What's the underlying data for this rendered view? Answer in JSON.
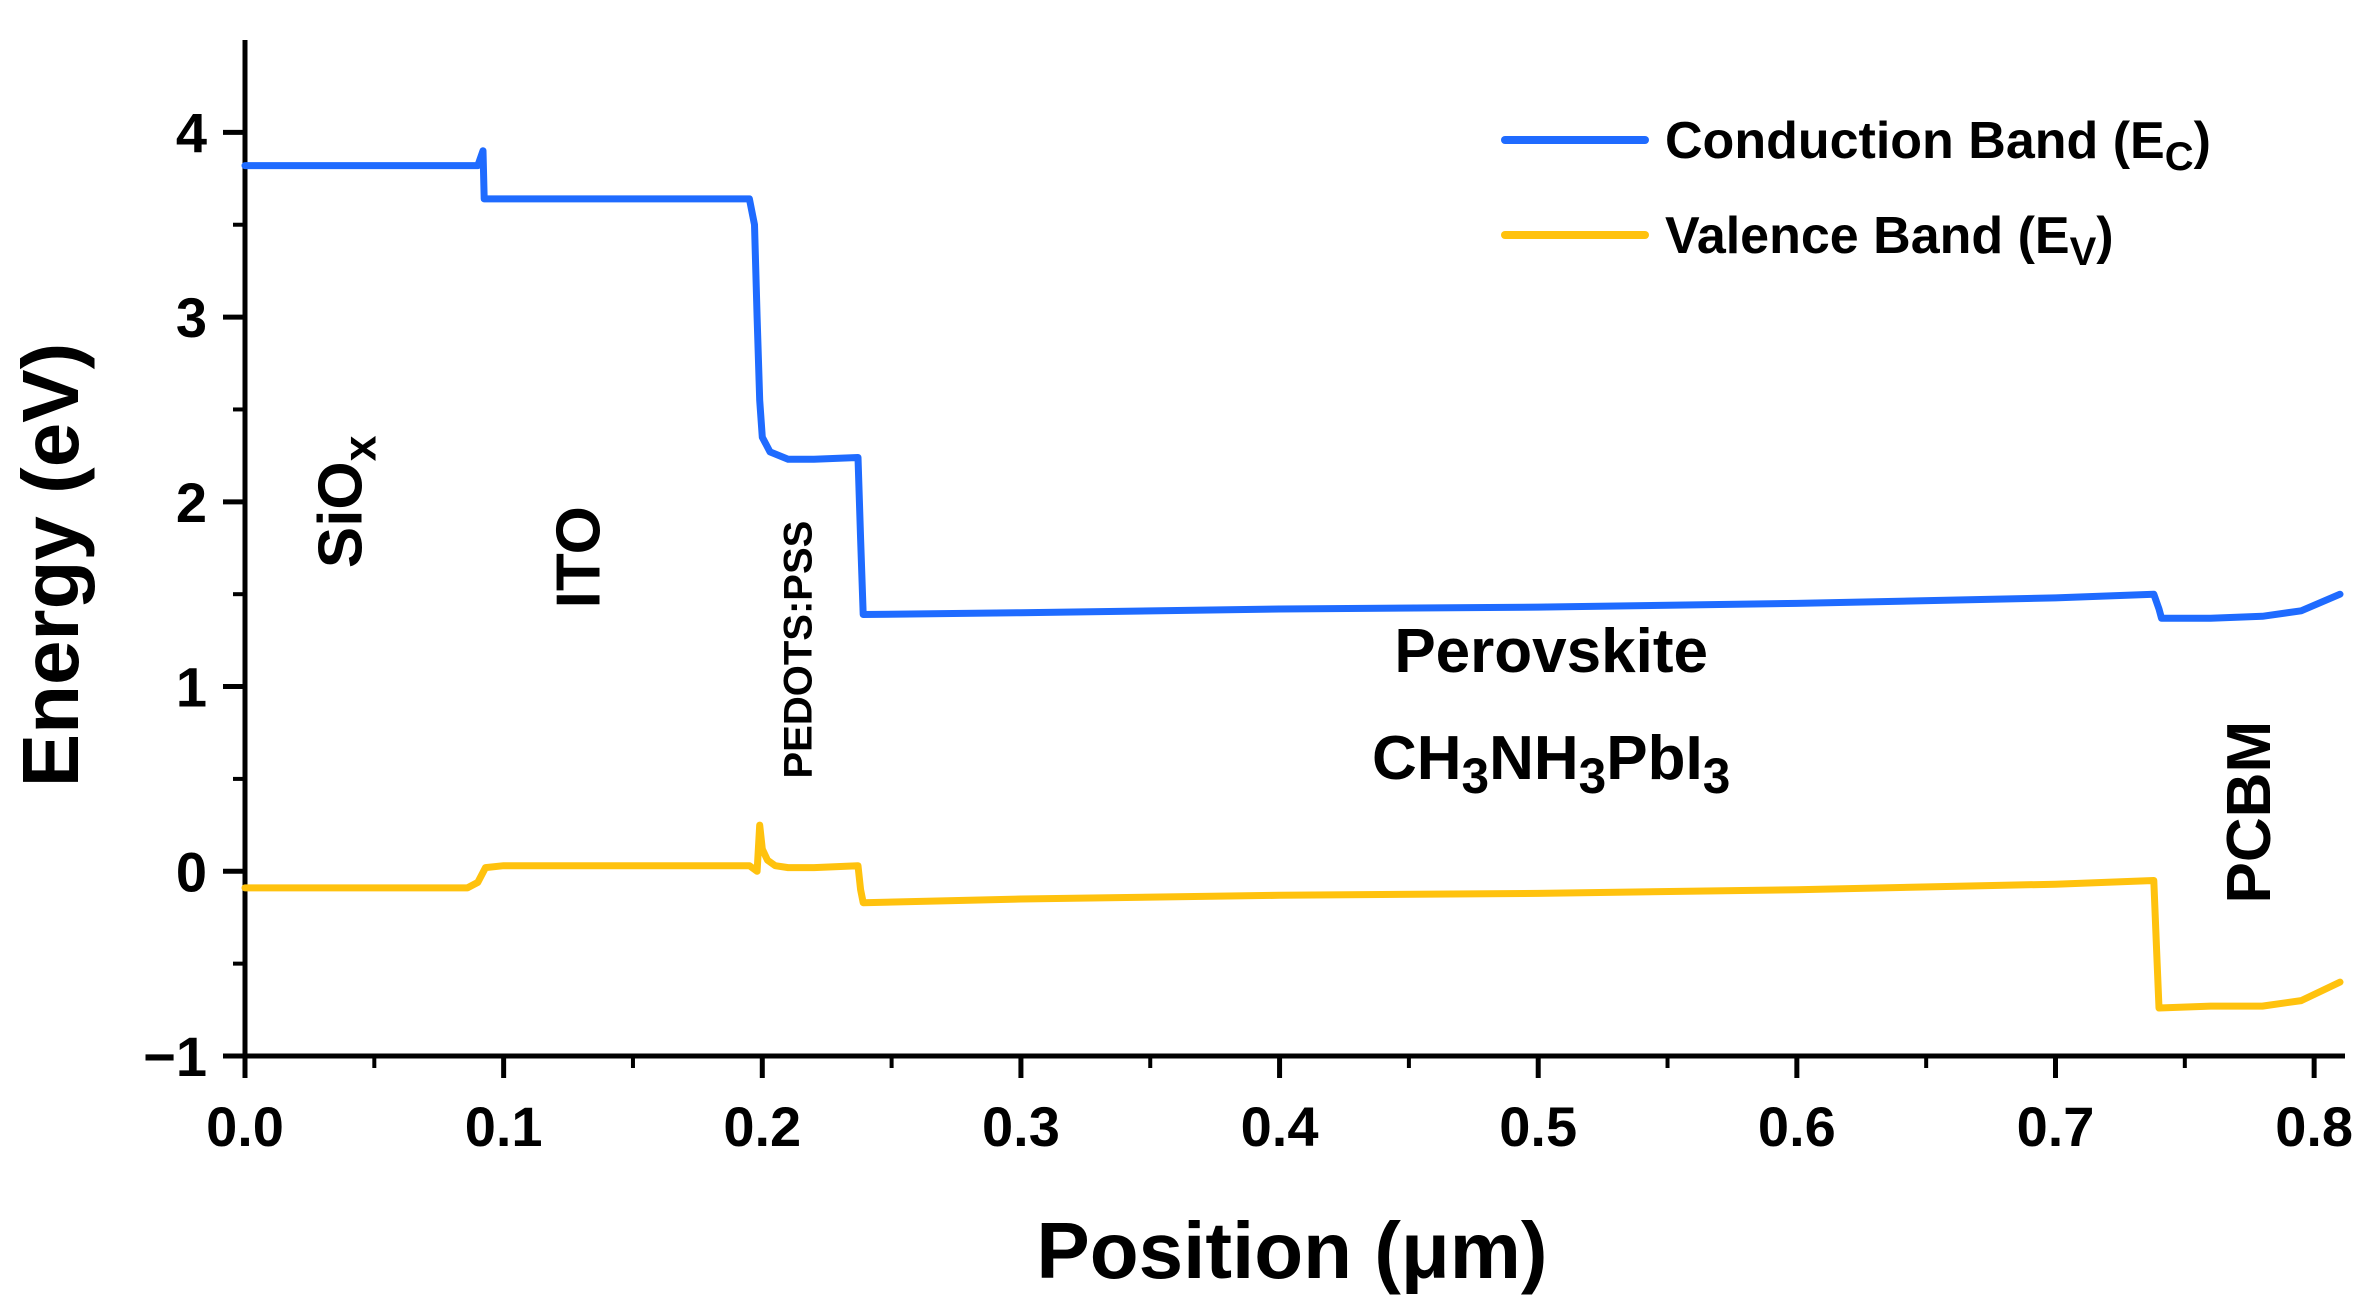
{
  "colors": {
    "conduction": "#1f6bff",
    "valence": "#ffc20e",
    "axis": "#000000"
  },
  "chart_data": {
    "type": "line",
    "title": "",
    "xlabel": "Position (μm)",
    "ylabel": "Energy (eV)",
    "xlim": [
      0.0,
      0.81
    ],
    "ylim": [
      -1.0,
      4.5
    ],
    "x_ticks": [
      0.0,
      0.1,
      0.2,
      0.3,
      0.4,
      0.5,
      0.6,
      0.7,
      0.8
    ],
    "x_tick_labels": [
      "0.0",
      "0.1",
      "0.2",
      "0.3",
      "0.4",
      "0.5",
      "0.6",
      "0.7",
      "0.8"
    ],
    "y_ticks": [
      -1,
      0,
      1,
      2,
      3,
      4
    ],
    "y_tick_labels": [
      "−1",
      "0",
      "1",
      "2",
      "3",
      "4"
    ],
    "legend": {
      "placement": "top-right",
      "entries": [
        {
          "label": "Conduction Band (E",
          "sub": "C",
          "close": ")",
          "series": "conduction"
        },
        {
          "label": "Valence Band (E",
          "sub": "V",
          "close": ")",
          "series": "valence"
        }
      ]
    },
    "series": [
      {
        "name": "Conduction Band (Ec)",
        "color_key": "conduction",
        "x": [
          0.0,
          0.09,
          0.092,
          0.0925,
          0.093,
          0.095,
          0.195,
          0.197,
          0.198,
          0.199,
          0.2,
          0.203,
          0.21,
          0.22,
          0.237,
          0.238,
          0.239,
          0.3,
          0.4,
          0.5,
          0.6,
          0.7,
          0.738,
          0.74,
          0.741,
          0.76,
          0.78,
          0.795,
          0.81
        ],
        "y": [
          3.82,
          3.82,
          3.9,
          3.64,
          3.64,
          3.64,
          3.64,
          3.5,
          3.0,
          2.55,
          2.35,
          2.27,
          2.23,
          2.23,
          2.24,
          1.8,
          1.39,
          1.4,
          1.42,
          1.43,
          1.45,
          1.48,
          1.5,
          1.42,
          1.37,
          1.37,
          1.38,
          1.41,
          1.5
        ]
      },
      {
        "name": "Valence Band (Ev)",
        "color_key": "valence",
        "x": [
          0.0,
          0.086,
          0.09,
          0.093,
          0.1,
          0.15,
          0.195,
          0.198,
          0.199,
          0.2,
          0.202,
          0.205,
          0.21,
          0.22,
          0.237,
          0.238,
          0.239,
          0.3,
          0.4,
          0.5,
          0.6,
          0.7,
          0.738,
          0.739,
          0.74,
          0.76,
          0.78,
          0.795,
          0.81
        ],
        "y": [
          -0.09,
          -0.09,
          -0.06,
          0.02,
          0.03,
          0.03,
          0.03,
          0.0,
          0.25,
          0.12,
          0.06,
          0.03,
          0.02,
          0.02,
          0.03,
          -0.1,
          -0.17,
          -0.15,
          -0.13,
          -0.12,
          -0.1,
          -0.07,
          -0.05,
          -0.4,
          -0.74,
          -0.73,
          -0.73,
          -0.7,
          -0.6
        ]
      }
    ],
    "annotations": [
      {
        "text": "SiO",
        "sub": "x",
        "x": 0.045,
        "y": 2.0,
        "rotate": -90
      },
      {
        "text": "ITO",
        "x": 0.137,
        "y": 1.7,
        "rotate": -90
      },
      {
        "text": "PEDOTS:PSS",
        "x": 0.219,
        "y": 1.2,
        "rotate": -90,
        "size": "small"
      },
      {
        "text": "Perovskite",
        "x": 0.505,
        "y": 1.08,
        "rotate": 0
      },
      {
        "text": "CH",
        "formula": [
          [
            "CH",
            ""
          ],
          [
            "3",
            "sub"
          ],
          [
            "NH",
            ""
          ],
          [
            "3",
            "sub"
          ],
          [
            "PbI",
            ""
          ],
          [
            "3",
            "sub"
          ]
        ],
        "x": 0.505,
        "y": 0.5,
        "rotate": 0
      },
      {
        "text": "PCBM",
        "x": 0.783,
        "y": 0.32,
        "rotate": -90
      }
    ]
  }
}
